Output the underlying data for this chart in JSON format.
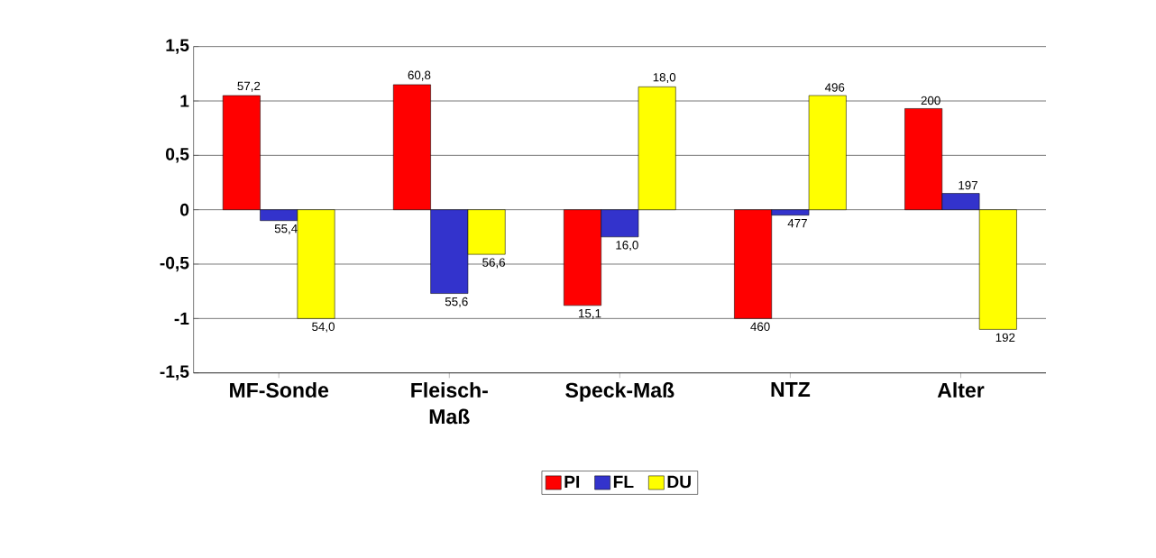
{
  "chart_data": {
    "type": "bar",
    "categories": [
      "MF-Sonde",
      "Fleisch-Maß",
      "Speck-Maß",
      "NTZ",
      "Alter"
    ],
    "series": [
      {
        "name": "PI",
        "color": "#ff0000",
        "values": [
          1.05,
          1.15,
          -0.88,
          -1.0,
          0.93
        ]
      },
      {
        "name": "FL",
        "color": "#3333cc",
        "values": [
          -0.1,
          -0.77,
          -0.25,
          -0.05,
          0.15
        ]
      },
      {
        "name": "DU",
        "color": "#ffff00",
        "values": [
          -1.0,
          -0.41,
          1.13,
          1.05,
          -1.1
        ]
      }
    ],
    "annotations": [
      "57,2",
      "60,8",
      "15,1",
      "460",
      "200",
      "55,4",
      "55,6",
      "16,0",
      "477",
      "197",
      "54,0",
      "56,6",
      "18,0",
      "496",
      "192"
    ],
    "ylim": [
      -1.5,
      1.5
    ],
    "yticks": [
      {
        "value": -1.5,
        "label": "-1,5"
      },
      {
        "value": -1,
        "label": "-1"
      },
      {
        "value": -0.5,
        "label": "-0,5"
      },
      0,
      {
        "value": 0.5,
        "label": "0,5"
      },
      1,
      {
        "value": 1.5,
        "label": "1,5"
      }
    ],
    "grid": "y",
    "legend": "bottom"
  }
}
